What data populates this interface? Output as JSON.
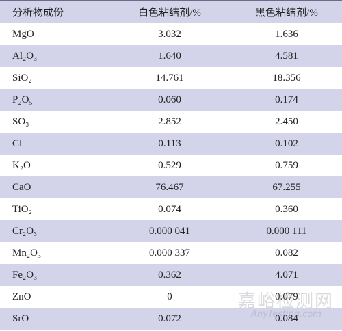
{
  "table": {
    "header": [
      "分析物成份",
      "白色粘结剂/%",
      "黑色粘结剂/%"
    ],
    "rows": [
      [
        "MgO",
        "3.032",
        "1.636"
      ],
      [
        "Al₂O₃",
        "1.640",
        "4.581"
      ],
      [
        "SiO₂",
        "14.761",
        "18.356"
      ],
      [
        "P₂O₅",
        "0.060",
        "0.174"
      ],
      [
        "SO₃",
        "2.852",
        "2.450"
      ],
      [
        "Cl",
        "0.113",
        "0.102"
      ],
      [
        "K₂O",
        "0.529",
        "0.759"
      ],
      [
        "CaO",
        "76.467",
        "67.255"
      ],
      [
        "TiO₂",
        "0.074",
        "0.360"
      ],
      [
        "Cr₂O₃",
        "0.000 041",
        "0.000 111"
      ],
      [
        "Mn₂O₃",
        "0.000 337",
        "0.082"
      ],
      [
        "Fe₂O₃",
        "0.362",
        "4.071"
      ],
      [
        "ZnO",
        "0",
        "0.079"
      ],
      [
        "SrO",
        "0.072",
        "0.084"
      ]
    ]
  },
  "watermark": {
    "name": "嘉峪检测网",
    "site": "AnyTesting.com"
  }
}
